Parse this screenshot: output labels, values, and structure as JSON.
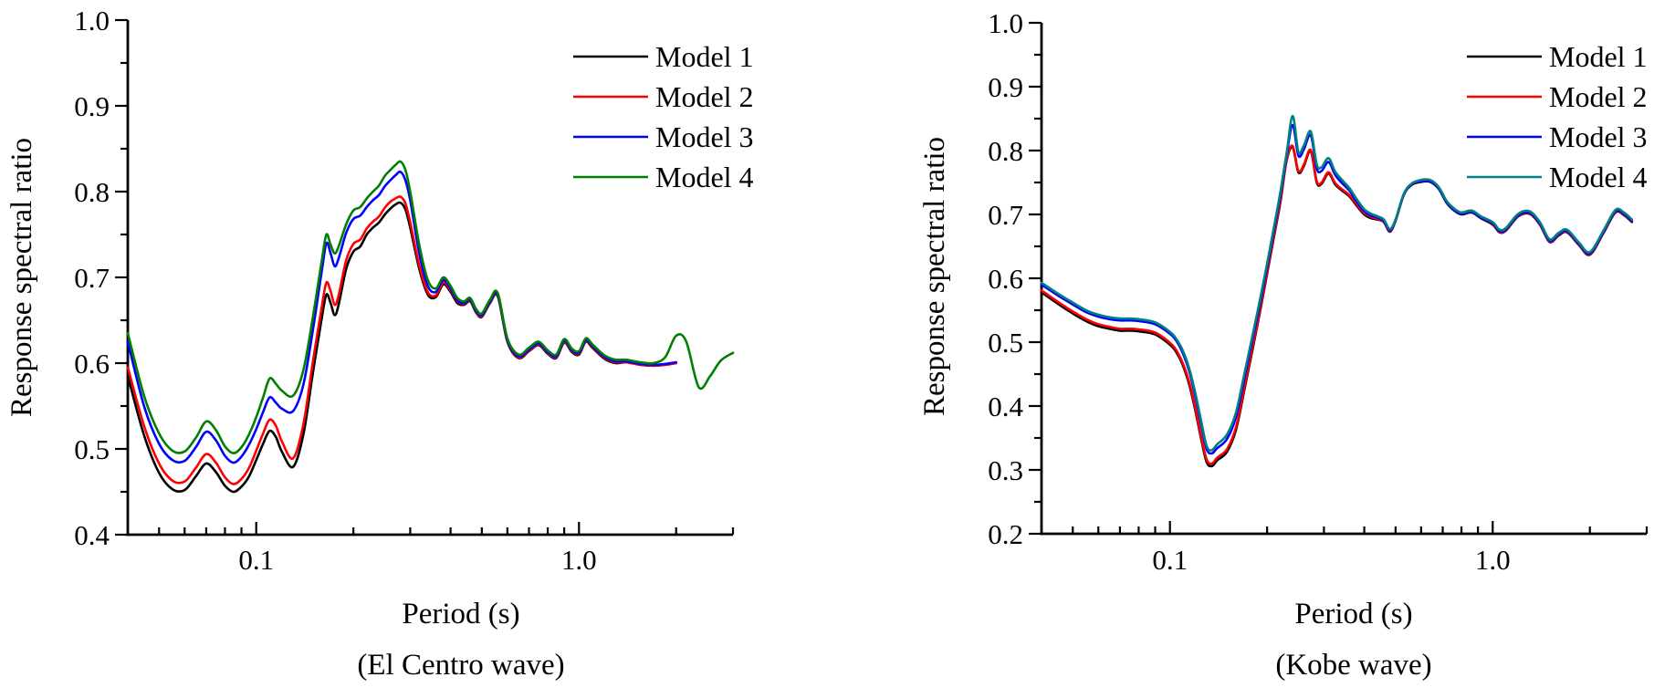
{
  "figure": {
    "background": "#ffffff",
    "text_color": "#000000"
  },
  "chart_data": [
    {
      "type": "line",
      "name": "el-centro-chart",
      "title": "",
      "xlabel": "Period (s)",
      "ylabel": "Response spectral ratio",
      "caption": "(El Centro wave)",
      "xscale": "log",
      "grid": false,
      "legend_position": "top-right",
      "xlim": [
        0.04,
        3.0
      ],
      "ylim": [
        0.4,
        1.0
      ],
      "yticks": [
        {
          "v": 0.4,
          "label": "0.4"
        },
        {
          "v": 0.5,
          "label": "0.5"
        },
        {
          "v": 0.6,
          "label": "0.6"
        },
        {
          "v": 0.7,
          "label": "0.7"
        },
        {
          "v": 0.8,
          "label": "0.8"
        },
        {
          "v": 0.9,
          "label": "0.9"
        },
        {
          "v": 1.0,
          "label": "1.0"
        }
      ],
      "yticks_minor": [
        0.45,
        0.55,
        0.65,
        0.75,
        0.85,
        0.95
      ],
      "xticks": [
        {
          "v": 0.1,
          "label": "0.1"
        },
        {
          "v": 1.0,
          "label": "1.0"
        }
      ],
      "xticks_minor": [
        0.05,
        0.06,
        0.07,
        0.08,
        0.09,
        0.2,
        0.3,
        0.4,
        0.5,
        0.6,
        0.7,
        0.8,
        0.9,
        2.0,
        3.0
      ],
      "x": [
        0.04,
        0.045,
        0.05,
        0.055,
        0.06,
        0.065,
        0.07,
        0.075,
        0.08,
        0.085,
        0.09,
        0.095,
        0.1,
        0.105,
        0.11,
        0.115,
        0.12,
        0.13,
        0.14,
        0.15,
        0.16,
        0.165,
        0.17,
        0.175,
        0.18,
        0.19,
        0.2,
        0.21,
        0.22,
        0.23,
        0.24,
        0.25,
        0.26,
        0.27,
        0.28,
        0.29,
        0.3,
        0.32,
        0.34,
        0.36,
        0.38,
        0.4,
        0.42,
        0.44,
        0.46,
        0.48,
        0.5,
        0.53,
        0.56,
        0.6,
        0.65,
        0.7,
        0.75,
        0.8,
        0.85,
        0.9,
        0.95,
        1.0,
        1.05,
        1.1,
        1.2,
        1.3,
        1.4,
        1.55,
        1.7,
        1.85,
        2.0,
        2.15,
        2.35,
        2.55,
        2.75,
        3.0
      ],
      "series": [
        {
          "name": "Model 1",
          "color": "#000000",
          "values": [
            0.585,
            0.515,
            0.472,
            0.453,
            0.452,
            0.468,
            0.483,
            0.473,
            0.457,
            0.45,
            0.456,
            0.468,
            0.487,
            0.506,
            0.521,
            0.514,
            0.497,
            0.479,
            0.517,
            0.59,
            0.655,
            0.68,
            0.67,
            0.656,
            0.668,
            0.71,
            0.73,
            0.736,
            0.75,
            0.758,
            0.764,
            0.773,
            0.78,
            0.785,
            0.787,
            0.779,
            0.758,
            0.71,
            0.68,
            0.677,
            0.692,
            0.683,
            0.67,
            0.668,
            0.672,
            0.659,
            0.654,
            0.67,
            0.678,
            0.625,
            0.606,
            0.614,
            0.621,
            0.611,
            0.606,
            0.624,
            0.613,
            0.61,
            0.625,
            0.618,
            0.605,
            0.6,
            0.601,
            0.598,
            0.597,
            0.598,
            0.6,
            null,
            null,
            null,
            null,
            null
          ]
        },
        {
          "name": "Model 2",
          "color": "#ff0000",
          "values": [
            0.595,
            0.526,
            0.483,
            0.463,
            0.462,
            0.478,
            0.494,
            0.484,
            0.467,
            0.459,
            0.465,
            0.478,
            0.498,
            0.518,
            0.534,
            0.527,
            0.509,
            0.489,
            0.529,
            0.603,
            0.668,
            0.694,
            0.684,
            0.668,
            0.679,
            0.72,
            0.739,
            0.744,
            0.757,
            0.765,
            0.771,
            0.781,
            0.788,
            0.792,
            0.794,
            0.786,
            0.764,
            0.714,
            0.683,
            0.679,
            0.694,
            0.685,
            0.672,
            0.669,
            0.673,
            0.66,
            0.655,
            0.671,
            0.679,
            0.626,
            0.607,
            0.615,
            0.622,
            0.612,
            0.607,
            0.625,
            0.614,
            0.611,
            0.626,
            0.619,
            0.606,
            0.601,
            0.601,
            0.598,
            0.597,
            0.598,
            0.6,
            null,
            null,
            null,
            null,
            null
          ]
        },
        {
          "name": "Model 3",
          "color": "#0000ff",
          "values": [
            0.625,
            0.549,
            0.506,
            0.487,
            0.486,
            0.502,
            0.52,
            0.51,
            0.492,
            0.484,
            0.491,
            0.505,
            0.523,
            0.543,
            0.56,
            0.554,
            0.547,
            0.544,
            0.575,
            0.64,
            0.71,
            0.74,
            0.728,
            0.713,
            0.722,
            0.752,
            0.768,
            0.772,
            0.782,
            0.79,
            0.796,
            0.806,
            0.813,
            0.819,
            0.823,
            0.813,
            0.79,
            0.728,
            0.69,
            0.683,
            0.697,
            0.687,
            0.673,
            0.67,
            0.674,
            0.661,
            0.656,
            0.672,
            0.68,
            0.627,
            0.608,
            0.616,
            0.623,
            0.613,
            0.608,
            0.626,
            0.615,
            0.612,
            0.627,
            0.62,
            0.607,
            0.602,
            0.602,
            0.599,
            0.598,
            0.599,
            0.601,
            null,
            null,
            null,
            null,
            null
          ]
        },
        {
          "name": "Model 4",
          "color": "#008000",
          "values": [
            0.635,
            0.561,
            0.518,
            0.498,
            0.497,
            0.513,
            0.532,
            0.522,
            0.503,
            0.495,
            0.502,
            0.517,
            0.537,
            0.56,
            0.582,
            0.576,
            0.568,
            0.562,
            0.592,
            0.655,
            0.722,
            0.75,
            0.738,
            0.728,
            0.736,
            0.762,
            0.778,
            0.782,
            0.792,
            0.8,
            0.807,
            0.818,
            0.825,
            0.831,
            0.835,
            0.825,
            0.8,
            0.738,
            0.697,
            0.687,
            0.7,
            0.69,
            0.676,
            0.672,
            0.676,
            0.663,
            0.658,
            0.674,
            0.682,
            0.629,
            0.61,
            0.618,
            0.625,
            0.615,
            0.61,
            0.628,
            0.617,
            0.614,
            0.629,
            0.622,
            0.609,
            0.604,
            0.604,
            0.601,
            0.6,
            0.607,
            0.632,
            0.625,
            0.572,
            0.585,
            0.603,
            0.612
          ]
        }
      ]
    },
    {
      "type": "line",
      "name": "kobe-chart",
      "title": "",
      "xlabel": "Period (s)",
      "ylabel": "Response spectral ratio",
      "caption": "(Kobe wave)",
      "xscale": "log",
      "grid": false,
      "legend_position": "top-right",
      "xlim": [
        0.04,
        3.0
      ],
      "ylim": [
        0.2,
        1.0
      ],
      "yticks": [
        {
          "v": 0.2,
          "label": "0.2"
        },
        {
          "v": 0.3,
          "label": "0.3"
        },
        {
          "v": 0.4,
          "label": "0.4"
        },
        {
          "v": 0.5,
          "label": "0.5"
        },
        {
          "v": 0.6,
          "label": "0.6"
        },
        {
          "v": 0.7,
          "label": "0.7"
        },
        {
          "v": 0.8,
          "label": "0.8"
        },
        {
          "v": 0.9,
          "label": "0.9"
        },
        {
          "v": 1.0,
          "label": "1.0"
        }
      ],
      "yticks_minor": [
        0.25,
        0.35,
        0.45,
        0.55,
        0.65,
        0.75,
        0.85,
        0.95
      ],
      "xticks": [
        {
          "v": 0.1,
          "label": "0.1"
        },
        {
          "v": 1.0,
          "label": "1.0"
        }
      ],
      "xticks_minor": [
        0.05,
        0.06,
        0.07,
        0.08,
        0.09,
        0.2,
        0.3,
        0.4,
        0.5,
        0.6,
        0.7,
        0.8,
        0.9,
        2.0,
        3.0
      ],
      "x": [
        0.04,
        0.045,
        0.05,
        0.055,
        0.06,
        0.065,
        0.07,
        0.075,
        0.08,
        0.09,
        0.1,
        0.105,
        0.11,
        0.115,
        0.12,
        0.125,
        0.13,
        0.135,
        0.14,
        0.15,
        0.16,
        0.17,
        0.18,
        0.19,
        0.2,
        0.21,
        0.22,
        0.23,
        0.24,
        0.25,
        0.26,
        0.273,
        0.285,
        0.295,
        0.31,
        0.325,
        0.34,
        0.36,
        0.38,
        0.4,
        0.42,
        0.44,
        0.46,
        0.48,
        0.5,
        0.53,
        0.56,
        0.6,
        0.64,
        0.68,
        0.72,
        0.76,
        0.8,
        0.86,
        0.92,
        1.0,
        1.05,
        1.1,
        1.2,
        1.3,
        1.4,
        1.5,
        1.6,
        1.7,
        1.85,
        2.0,
        2.2,
        2.4,
        2.55,
        2.7
      ],
      "series": [
        {
          "name": "Model 1",
          "color": "#000000",
          "values": [
            0.578,
            0.56,
            0.545,
            0.533,
            0.525,
            0.521,
            0.518,
            0.518,
            0.517,
            0.512,
            0.496,
            0.483,
            0.462,
            0.432,
            0.392,
            0.348,
            0.312,
            0.306,
            0.315,
            0.328,
            0.362,
            0.425,
            0.487,
            0.547,
            0.607,
            0.665,
            0.72,
            0.785,
            0.805,
            0.766,
            0.776,
            0.799,
            0.75,
            0.748,
            0.764,
            0.747,
            0.738,
            0.728,
            0.713,
            0.7,
            0.694,
            0.692,
            0.688,
            0.673,
            0.69,
            0.73,
            0.746,
            0.751,
            0.751,
            0.74,
            0.718,
            0.706,
            0.7,
            0.703,
            0.694,
            0.684,
            0.672,
            0.675,
            0.697,
            0.701,
            0.684,
            0.657,
            0.667,
            0.672,
            0.652,
            0.637,
            0.67,
            0.703,
            0.699,
            0.688
          ]
        },
        {
          "name": "Model 2",
          "color": "#ff0000",
          "values": [
            0.581,
            0.563,
            0.548,
            0.536,
            0.528,
            0.524,
            0.521,
            0.521,
            0.52,
            0.515,
            0.499,
            0.486,
            0.465,
            0.436,
            0.396,
            0.352,
            0.316,
            0.31,
            0.319,
            0.332,
            0.366,
            0.429,
            0.491,
            0.55,
            0.61,
            0.668,
            0.723,
            0.787,
            0.807,
            0.768,
            0.778,
            0.801,
            0.752,
            0.75,
            0.766,
            0.749,
            0.74,
            0.73,
            0.715,
            0.702,
            0.696,
            0.693,
            0.689,
            0.674,
            0.691,
            0.731,
            0.747,
            0.752,
            0.752,
            0.741,
            0.719,
            0.707,
            0.701,
            0.704,
            0.695,
            0.685,
            0.673,
            0.676,
            0.698,
            0.702,
            0.685,
            0.658,
            0.668,
            0.673,
            0.653,
            0.638,
            0.671,
            0.704,
            0.7,
            0.689
          ]
        },
        {
          "name": "Model 3",
          "color": "#0000ff",
          "values": [
            0.59,
            0.573,
            0.559,
            0.547,
            0.54,
            0.536,
            0.534,
            0.534,
            0.533,
            0.528,
            0.513,
            0.501,
            0.481,
            0.453,
            0.414,
            0.371,
            0.332,
            0.326,
            0.334,
            0.348,
            0.382,
            0.443,
            0.503,
            0.56,
            0.618,
            0.675,
            0.731,
            0.793,
            0.84,
            0.792,
            0.802,
            0.824,
            0.772,
            0.768,
            0.782,
            0.762,
            0.75,
            0.737,
            0.719,
            0.705,
            0.698,
            0.695,
            0.69,
            0.675,
            0.691,
            0.731,
            0.747,
            0.752,
            0.752,
            0.741,
            0.719,
            0.707,
            0.701,
            0.704,
            0.695,
            0.686,
            0.674,
            0.677,
            0.699,
            0.703,
            0.686,
            0.659,
            0.669,
            0.674,
            0.654,
            0.639,
            0.672,
            0.705,
            0.701,
            0.69
          ]
        },
        {
          "name": "Model 4",
          "color": "#008080",
          "values": [
            0.593,
            0.576,
            0.562,
            0.55,
            0.543,
            0.539,
            0.537,
            0.537,
            0.536,
            0.531,
            0.516,
            0.504,
            0.485,
            0.457,
            0.419,
            0.376,
            0.337,
            0.331,
            0.34,
            0.355,
            0.389,
            0.45,
            0.509,
            0.566,
            0.623,
            0.68,
            0.736,
            0.797,
            0.854,
            0.798,
            0.808,
            0.83,
            0.778,
            0.774,
            0.788,
            0.767,
            0.755,
            0.741,
            0.723,
            0.708,
            0.701,
            0.697,
            0.692,
            0.677,
            0.692,
            0.732,
            0.748,
            0.754,
            0.754,
            0.743,
            0.721,
            0.709,
            0.703,
            0.706,
            0.697,
            0.688,
            0.676,
            0.679,
            0.701,
            0.705,
            0.688,
            0.661,
            0.671,
            0.676,
            0.656,
            0.641,
            0.674,
            0.707,
            0.703,
            0.692
          ]
        }
      ]
    }
  ]
}
